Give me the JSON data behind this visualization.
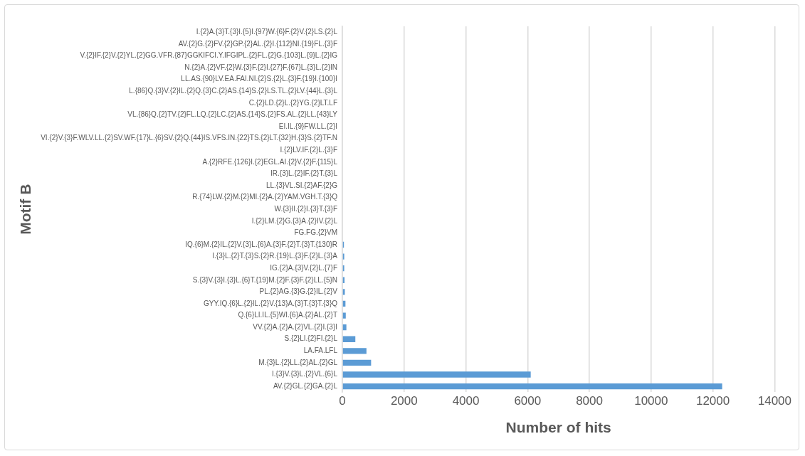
{
  "chart_data": {
    "type": "bar",
    "orientation": "horizontal",
    "xlabel": "Number of hits",
    "ylabel": "Motif B",
    "categories": [
      "I.{2}A.{3}T.{3}I.{5}I.{97}W.{6}F.{2}V.{2}LS.{2}L",
      "AV.{2}G.{2}FV.{2}GP.{2}AL.{2}I.{112}NI.{19}FL.{3}F",
      "V.{2}IF.{2}V.{2}YL.{2}GG.VFR.{87}GGKIFCI.Y.IFGIPL.{2}FL.{2}G.{103}L.{9}L.{2}IG",
      "N.{2}A.{2}VF.{2}W.{3}F.{2}I.{27}F.{67}L.{3}L.{2}IN",
      "LL.AS.{90}LV.EA.FAI.NI.{2}S.{2}L.{3}F.{19}I.{100}I",
      "L.{86}Q.{3}V.{2}IL.{2}Q.{3}C.{2}AS.{14}S.{2}LS.TL.{2}LV.{44}L.{3}L",
      "C.{2}LD.{2}L.{2}YG.{2}LT.LF",
      "VL.{86}Q.{2}TV.{2}FL.LQ.{2}LC.{2}AS.{14}S.{2}FS.AL.{2}LL.{43}LY",
      "EI.IL.{9}FW.LL.{2}I",
      "VI.{2}V.{3}F.WLV.LL.{2}SV.WF.{17}L.{6}SV.{2}Q.{44}IS.VFS.IN.{22}TS.{2}LT.{32}H.{3}S.{2}TF.N",
      "I.{2}LV.IF.{2}L.{3}F",
      "A.{2}RFE.{126}I.{2}EGL.AI.{2}V.{2}F.{115}L",
      "IR.{3}L.{2}IF.{2}T.{3}L",
      "LL.{3}VL.SI.{2}AF.{2}G",
      "R.{74}LW.{2}M.{2}MI.{2}A.{2}YAM.VGH.T.{3}Q",
      "W.{3}II.{2}I.{3}T.{3}F",
      "I.{2}LM.{2}G.{3}A.{2}IV.{2}L",
      "FG.FG.{2}VM",
      "IQ.{6}M.{2}IL.{2}V.{3}L.{6}A.{3}F.{2}T.{3}T.{130}R",
      "I.{3}L.{2}T.{3}S.{2}R.{19}L.{3}F.{2}L.{3}A",
      "IG.{2}A.{3}V.{2}L.{7}F",
      "S.{3}V.{3}I.{3}L.{6}T.{19}M.{2}F.{3}F.{2}LL.{5}N",
      "PL.{2}AG.{3}G.{2}IL.{2}V",
      "GYY.IQ.{6}L.{2}IL.{2}V.{13}A.{3}T.{3}T.{3}Q",
      "Q.{6}LI.IL.{5}WI.{6}A.{2}AL.{2}T",
      "VV.{2}A.{2}A.{2}VL.{2}I.{3}I",
      "S.{2}LI.{2}FI.{2}L",
      "LA.FA.LFL",
      "M.{3}L.{2}LL.{2}AL.{2}GL",
      "I.{3}V.{3}L.{2}VL.{6}L",
      "AV.{2}GL.{2}GA.{2}L"
    ],
    "values": [
      0,
      0,
      0,
      0,
      0,
      0,
      0,
      0,
      0,
      0,
      0,
      0,
      0,
      0,
      null,
      null,
      null,
      null,
      50,
      60,
      60,
      70,
      80,
      100,
      110,
      130,
      420,
      780,
      930,
      6100,
      12300
    ],
    "color": "#5b9bd5",
    "xlim": [
      0,
      14000
    ],
    "xticks": [
      0,
      2000,
      4000,
      6000,
      8000,
      10000,
      12000,
      14000
    ],
    "grid": "x",
    "legend": false
  }
}
